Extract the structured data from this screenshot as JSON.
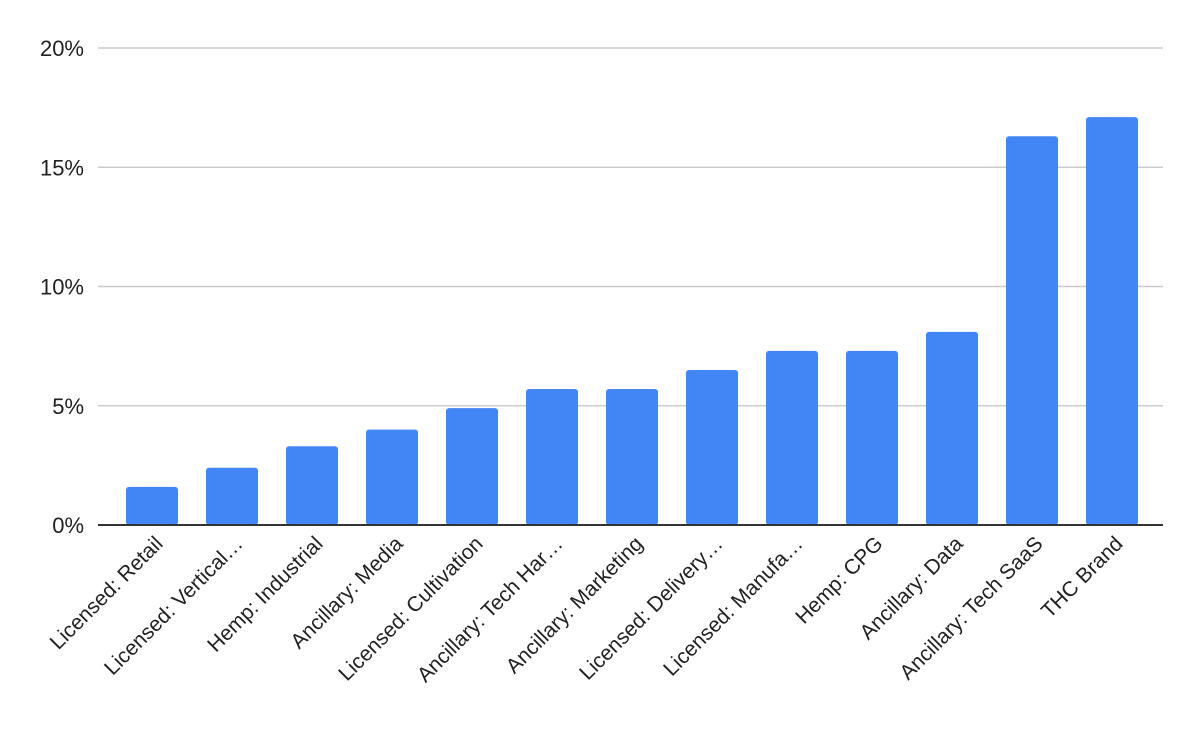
{
  "chart_data": {
    "type": "bar",
    "title": "",
    "xlabel": "",
    "ylabel": "",
    "categories": [
      "Licensed: Retail",
      "Licensed: Vertical…",
      "Hemp: Industrial",
      "Ancillary: Media",
      "Licensed: Cultivation",
      "Ancillary: Tech Har…",
      "Ancillary: Marketing",
      "Licensed: Delivery…",
      "Licensed: Manufa…",
      "Hemp: CPG",
      "Ancillary: Data",
      "Ancillary: Tech SaaS",
      "THC Brand"
    ],
    "values": [
      1.6,
      2.4,
      3.3,
      4.0,
      4.9,
      5.7,
      5.7,
      6.5,
      7.3,
      7.3,
      8.1,
      16.3,
      17.1
    ],
    "ylim": [
      0,
      20
    ],
    "y_ticks": [
      0,
      5,
      10,
      15,
      20
    ],
    "y_tick_format": "percent",
    "grid": true,
    "legend": "none",
    "bar_color": "#4285f4"
  }
}
